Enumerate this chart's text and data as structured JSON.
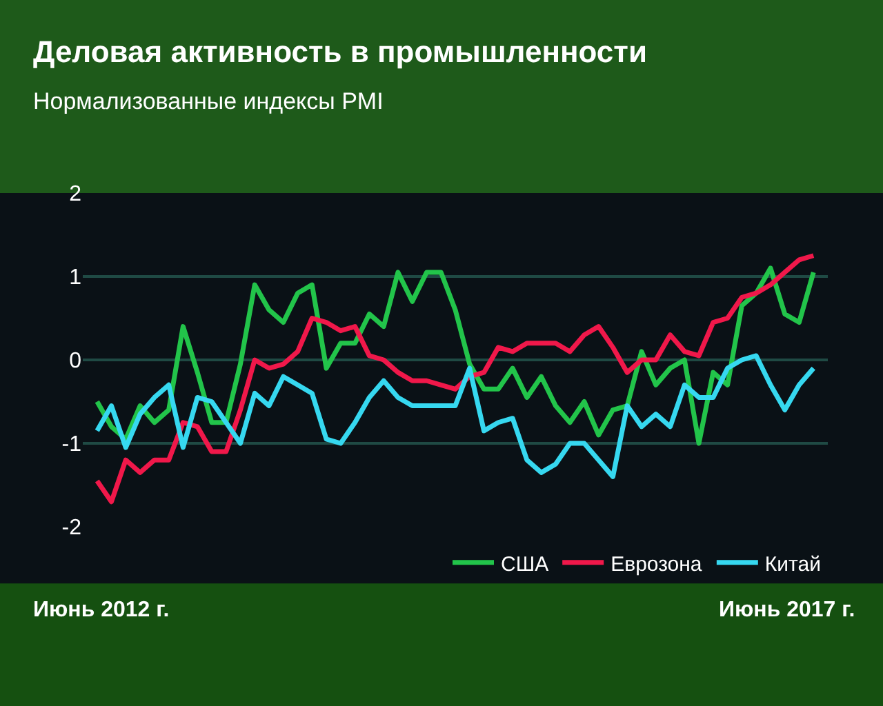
{
  "chart_data": {
    "type": "line",
    "title": "Деловая активность в промышленности",
    "subtitle": "Нормализованные индексы PMI",
    "categories": [
      null,
      null,
      null,
      null,
      null,
      null,
      null,
      null,
      null,
      null,
      null,
      null,
      null,
      null,
      null,
      null,
      null,
      null,
      null,
      null,
      null,
      null,
      null,
      null,
      null,
      null,
      null,
      null,
      null,
      null,
      null,
      null,
      null,
      null,
      null,
      null,
      null,
      null,
      null,
      null,
      null,
      null,
      null,
      null,
      null,
      null,
      null,
      null,
      null,
      null,
      null
    ],
    "series": [
      {
        "name": "США",
        "color": "#22c44a",
        "values": [
          -0.5,
          -0.8,
          -0.95,
          -0.55,
          -0.75,
          -0.6,
          0.4,
          -0.15,
          -0.75,
          -0.75,
          -0.05,
          0.9,
          0.6,
          0.45,
          0.8,
          0.9,
          -0.1,
          0.2,
          0.2,
          0.55,
          0.4,
          1.05,
          0.7,
          1.05,
          1.05,
          0.6,
          -0.05,
          -0.35,
          -0.35,
          -0.1,
          -0.45,
          -0.2,
          -0.55,
          -0.75,
          -0.5,
          -0.9,
          -0.6,
          -0.55,
          0.1,
          -0.3,
          -0.1,
          0.0,
          -1.0,
          -0.15,
          -0.3,
          0.65,
          0.8,
          1.1,
          0.55,
          0.45,
          1.05
        ]
      },
      {
        "name": "Еврозона",
        "color": "#f0184a",
        "values": [
          -1.45,
          -1.7,
          -1.2,
          -1.35,
          -1.2,
          -1.2,
          -0.75,
          -0.8,
          -1.1,
          -1.1,
          -0.6,
          0.0,
          -0.1,
          -0.05,
          0.1,
          0.5,
          0.45,
          0.35,
          0.4,
          0.05,
          0.0,
          -0.15,
          -0.25,
          -0.25,
          -0.3,
          -0.35,
          -0.2,
          -0.15,
          0.15,
          0.1,
          0.2,
          0.2,
          0.2,
          0.1,
          0.3,
          0.4,
          0.15,
          -0.15,
          0.0,
          0.0,
          0.3,
          0.1,
          0.05,
          0.45,
          0.5,
          0.75,
          0.8,
          0.9,
          1.05,
          1.2,
          1.25
        ]
      },
      {
        "name": "Китай",
        "color": "#36d8f0",
        "values": [
          -0.85,
          -0.55,
          -1.05,
          -0.65,
          -0.45,
          -0.3,
          -1.05,
          -0.45,
          -0.5,
          -0.75,
          -1.0,
          -0.4,
          -0.55,
          -0.2,
          -0.3,
          -0.4,
          -0.95,
          -1.0,
          -0.75,
          -0.45,
          -0.25,
          -0.45,
          -0.55,
          -0.55,
          -0.55,
          -0.55,
          -0.1,
          -0.85,
          -0.75,
          -0.7,
          -1.2,
          -1.35,
          -1.25,
          -1.0,
          -1.0,
          -1.2,
          -1.4,
          -0.55,
          -0.8,
          -0.65,
          -0.8,
          -0.3,
          -0.45,
          -0.45,
          -0.1,
          0.0,
          0.05,
          -0.3,
          -0.6,
          -0.3,
          -0.1
        ]
      }
    ],
    "ylim": [
      -2,
      2
    ],
    "yticks": [
      -2,
      -1,
      0,
      1,
      2
    ],
    "grid": "y",
    "legend": "bottom right",
    "annotations": [
      "Июнь 2012 г.",
      "Июнь 2017 г."
    ]
  }
}
